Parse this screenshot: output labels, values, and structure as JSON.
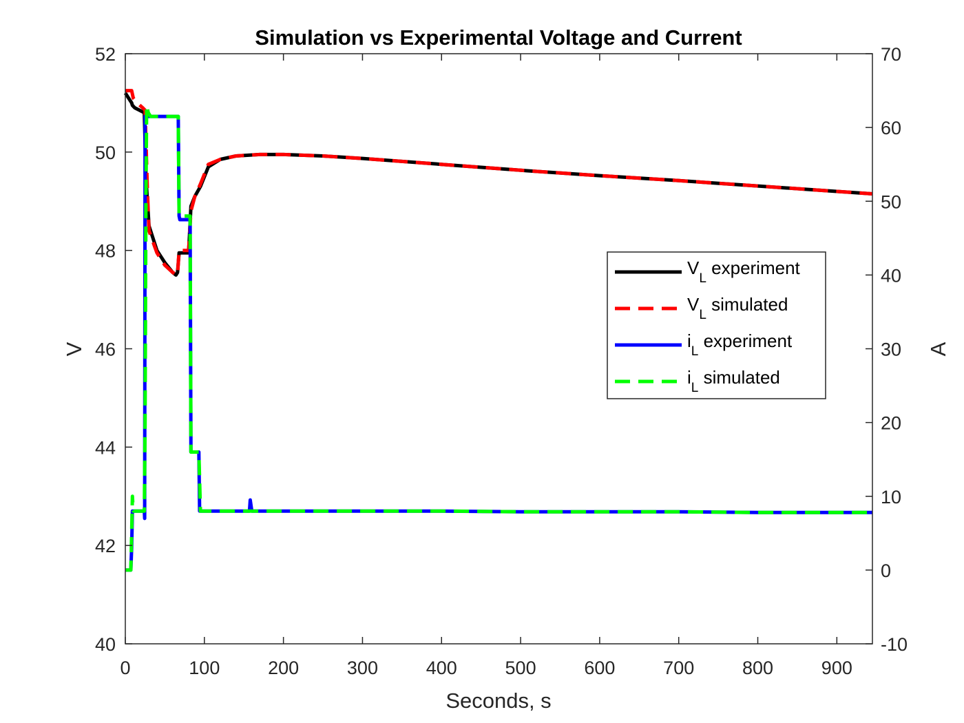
{
  "chart_data": {
    "type": "line",
    "title": "Simulation vs Experimental Voltage and Current",
    "xlabel": "Seconds, s",
    "ylabel_left": "V",
    "ylabel_right": "A",
    "xlim": [
      0,
      945
    ],
    "ylim_left": [
      40,
      52
    ],
    "ylim_right": [
      -10,
      70
    ],
    "xticks": [
      0,
      100,
      200,
      300,
      400,
      500,
      600,
      700,
      800,
      900
    ],
    "yticks_left": [
      40,
      42,
      44,
      46,
      48,
      50,
      52
    ],
    "yticks_right": [
      -10,
      0,
      10,
      20,
      30,
      40,
      50,
      60,
      70
    ],
    "grid": false,
    "legend_position": "center-right",
    "series": [
      {
        "name": "V experiment",
        "name_main": "V",
        "name_sub": "L",
        "name_rest": " experiment",
        "axis": "left",
        "color": "#000000",
        "dash": "solid",
        "x": [
          0,
          8,
          9,
          12,
          18,
          24,
          26,
          30,
          40,
          50,
          60,
          64,
          66,
          68,
          74,
          80,
          83,
          88,
          95,
          105,
          120,
          140,
          170,
          200,
          250,
          300,
          400,
          500,
          600,
          700,
          800,
          900,
          945
        ],
        "y": [
          51.2,
          51.0,
          50.95,
          50.9,
          50.85,
          50.8,
          49.5,
          48.5,
          48.0,
          47.75,
          47.55,
          47.5,
          47.55,
          47.95,
          47.95,
          47.95,
          48.9,
          49.1,
          49.3,
          49.7,
          49.85,
          49.92,
          49.95,
          49.95,
          49.92,
          49.87,
          49.75,
          49.63,
          49.52,
          49.42,
          49.31,
          49.2,
          49.15
        ]
      },
      {
        "name": "V simulated",
        "name_main": "V",
        "name_sub": "L",
        "name_rest": " simulated",
        "axis": "left",
        "color": "#ff0000",
        "dash": "dashed",
        "x": [
          0,
          8,
          10,
          15,
          22,
          25,
          28,
          30,
          40,
          50,
          60,
          66,
          68,
          74,
          80,
          83,
          88,
          95,
          105,
          120,
          140,
          170,
          200,
          250,
          300,
          400,
          500,
          600,
          700,
          800,
          900,
          945
        ],
        "y": [
          51.25,
          51.25,
          51.1,
          51.0,
          50.9,
          50.85,
          49.2,
          48.4,
          47.95,
          47.7,
          47.55,
          47.5,
          48.0,
          48.0,
          48.0,
          48.8,
          49.1,
          49.35,
          49.75,
          49.85,
          49.92,
          49.95,
          49.95,
          49.92,
          49.87,
          49.75,
          49.63,
          49.52,
          49.42,
          49.31,
          49.2,
          49.15
        ]
      },
      {
        "name": "i experiment",
        "name_main": "i",
        "name_sub": "L",
        "name_rest": " experiment",
        "axis": "right",
        "color": "#0000ff",
        "dash": "solid",
        "x": [
          0,
          7,
          8,
          9,
          10,
          22,
          24,
          24.5,
          25,
          27,
          30,
          66,
          67,
          68,
          69,
          70,
          80,
          82,
          83,
          84,
          85,
          92,
          93,
          94,
          95,
          140,
          155,
          157,
          158,
          160,
          200,
          300,
          400,
          500,
          600,
          700,
          800,
          900,
          945
        ],
        "y": [
          0,
          0,
          3,
          8,
          8,
          8,
          8,
          7,
          61.5,
          61.5,
          61.5,
          61.5,
          61.5,
          48,
          47.5,
          47.5,
          47.5,
          47.5,
          16,
          16,
          16,
          16,
          16,
          8,
          8,
          8,
          8,
          8,
          9.5,
          8,
          8,
          8,
          8,
          7.9,
          7.9,
          7.9,
          7.8,
          7.8,
          7.8
        ]
      },
      {
        "name": "i simulated",
        "name_main": "i",
        "name_sub": "L",
        "name_rest": " simulated",
        "axis": "right",
        "color": "#00ff00",
        "dash": "dashed",
        "x": [
          0,
          7,
          8,
          9,
          10,
          24,
          25,
          26,
          27,
          29,
          32,
          66,
          67,
          68,
          69,
          80,
          82,
          83,
          84,
          85,
          92,
          93,
          95,
          96,
          140,
          200,
          300,
          400,
          500,
          600,
          700,
          800,
          900,
          945
        ],
        "y": [
          0,
          0,
          5,
          10,
          8,
          8,
          20,
          50,
          63,
          62,
          61.5,
          61.5,
          61.5,
          48,
          48,
          48,
          48,
          16,
          16,
          16,
          16,
          16,
          8,
          8,
          8,
          8,
          8,
          8,
          7.9,
          7.9,
          7.9,
          7.8,
          7.8,
          7.8
        ]
      }
    ]
  }
}
